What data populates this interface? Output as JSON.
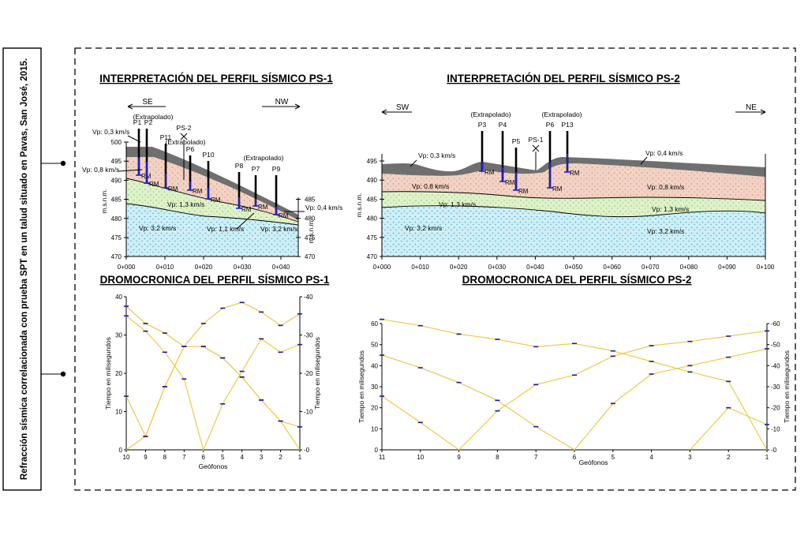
{
  "side_caption": "Refracción sísmica correlacionada con prueba SPT en un talud situado en Pavas, San José, 2015.",
  "colors": {
    "fill_top": "#6f6f6f",
    "fill_upper": "#f2d2c4",
    "fill_mid": "#dff1c9",
    "fill_bottom": "#cfeef6",
    "dot_upper": "#d08a70",
    "dot_mid": "#7cc36a",
    "dot_bottom": "#3aa9cf",
    "spt_rod": "#000000",
    "spt_interval": "#1b1bd0",
    "curve": "#f0c84a",
    "marker": "#1a1a9a"
  },
  "ps1": {
    "title": "INTERPRETACIÓN DEL PERFIL SÍSMICO PS-1",
    "dir_left": "SE",
    "dir_right": "NW",
    "axis_label": "m.s.n.m.",
    "y_ticks": [
      "500",
      "495",
      "490",
      "485",
      "480",
      "475",
      "470"
    ],
    "y_ticks_right": [
      "485",
      "480",
      "475",
      "470"
    ],
    "x_ticks": [
      "0+000",
      "0+010",
      "0+020",
      "0+030",
      "0+040"
    ],
    "extrapolado": "(Extrapolado)",
    "rm": "RM",
    "layers": [
      "Vp: 0,3 km/s",
      "Vp: 0,8 km/s",
      "Vp: 1,3 km/s",
      "Vp: 3,2 km/s",
      "Vp: 1,1 km/s",
      "Vp: 3,2 km/s",
      "Vp: 0,4 km/s"
    ],
    "boreholes": [
      "P1",
      "P2",
      "P11",
      "P6",
      "P10",
      "P8",
      "P7",
      "P9"
    ],
    "station": "PS-2"
  },
  "ps2": {
    "title": "INTERPRETACIÓN DEL PERFIL SÍSMICO PS-2",
    "dir_left": "SW",
    "dir_right": "NE",
    "axis_label": "m.s.n.m.",
    "y_ticks": [
      "495",
      "490",
      "485",
      "480",
      "475",
      "470"
    ],
    "x_ticks": [
      "0+000",
      "0+010",
      "0+020",
      "0+030",
      "0+040",
      "0+050",
      "0+060",
      "0+070",
      "0+080",
      "0+090",
      "0+100"
    ],
    "extrapolado": "(Extrapolado)",
    "rm": "RM",
    "layers": [
      "Vp: 0,3 km/s",
      "Vp: 0,8 km/s",
      "Vp: 1,3 km/s",
      "Vp: 3,2 km/s",
      "Vp: 0,4 km/s",
      "Vp: 0,8 km/s",
      "Vp: 1,3 km/s",
      "Vp: 3,2 km/s"
    ],
    "boreholes": [
      "P3",
      "P4",
      "P5",
      "P6",
      "P13"
    ],
    "station": "PS-1"
  },
  "dromo1": {
    "title": "DROMOCRONICA DEL PERFIL SÍSMICO PS-1",
    "y_label": "Tiempo en milisegundos",
    "x_label": "Geófonos",
    "y_ticks": [
      "40",
      "30",
      "20",
      "10",
      "0"
    ],
    "x_ticks": [
      "10",
      "9",
      "8",
      "7",
      "6",
      "5",
      "4",
      "3",
      "2",
      "1"
    ]
  },
  "dromo2": {
    "title": "DROMOCRONICA DEL PERFIL SÍSMICO PS-2",
    "y_label": "Tiempo en milisegundos",
    "x_label": "Geófonos",
    "y_ticks": [
      "60",
      "50",
      "40",
      "30",
      "20",
      "10",
      "0"
    ],
    "x_ticks": [
      "11",
      "10",
      "9",
      "8",
      "7",
      "6",
      "5",
      "4",
      "3",
      "2",
      "1"
    ]
  },
  "chart_data": [
    {
      "type": "line",
      "title": "DROMOCRONICA DEL PERFIL SÍSMICO PS-1",
      "xlabel": "Geófonos",
      "ylabel": "Tiempo en milisegundos",
      "categories": [
        "10",
        "9",
        "8",
        "7",
        "6",
        "5",
        "4",
        "3",
        "2",
        "1"
      ],
      "ylim": [
        0,
        40
      ],
      "series": [
        {
          "values": [
            14,
            3.5,
            16.5,
            27,
            27,
            24,
            19,
            13,
            7.5,
            0
          ]
        },
        {
          "values": [
            0,
            3.5,
            16.5,
            27,
            27,
            24,
            19,
            13,
            7.5,
            6
          ]
        },
        {
          "values": [
            35,
            31,
            25.5,
            18.5,
            0,
            12,
            20.5,
            29,
            25.5,
            27.5
          ]
        },
        {
          "values": [
            37.5,
            33,
            30.5,
            27,
            33,
            37,
            38.5,
            36,
            32.5,
            35.5
          ]
        }
      ]
    },
    {
      "type": "line",
      "title": "DROMOCRONICA DEL PERFIL SÍSMICO PS-2",
      "xlabel": "Geófonos",
      "ylabel": "Tiempo en milisegundos",
      "categories": [
        "11",
        "10",
        "9",
        "8",
        "7",
        "6",
        "5",
        "4",
        "3",
        "2",
        "1"
      ],
      "ylim": [
        0,
        60
      ],
      "series": [
        {
          "values": [
            62,
            59,
            55,
            52.5,
            49,
            50.5,
            47,
            42,
            37,
            32.5,
            0
          ]
        },
        {
          "values": [
            45,
            39,
            32,
            23.5,
            11,
            0,
            22,
            36,
            40,
            44,
            48
          ]
        },
        {
          "values": [
            25.5,
            13,
            0,
            18.5,
            31,
            35.5,
            44.5,
            49.5,
            51.5,
            54,
            56.5
          ]
        },
        {
          "values": [
            0,
            0,
            0,
            0,
            0,
            0,
            0,
            0,
            0,
            20,
            12
          ]
        }
      ]
    }
  ]
}
